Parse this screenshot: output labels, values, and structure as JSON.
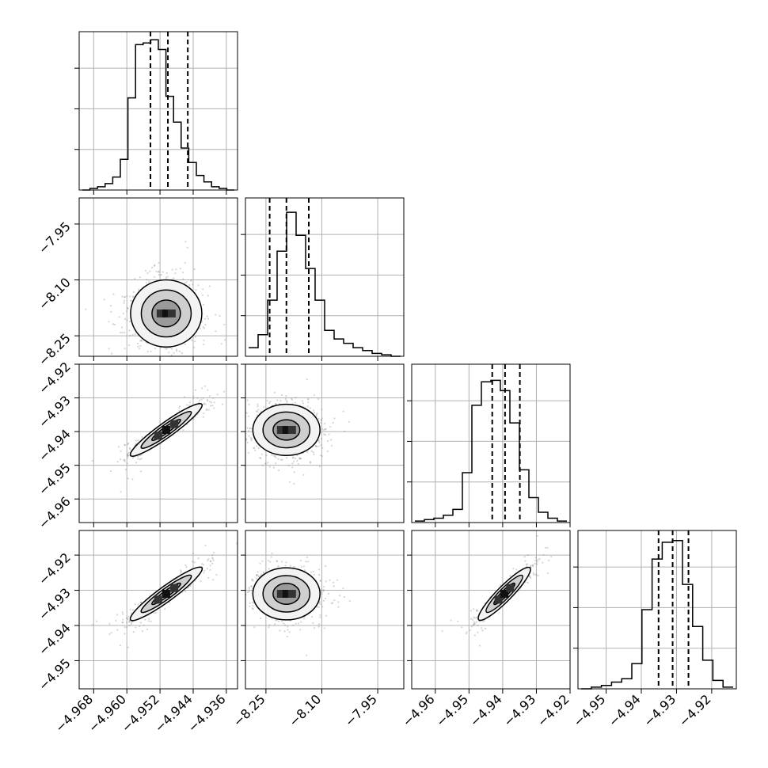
{
  "chart_data": {
    "type": "corner",
    "params": [
      {
        "id": "p1",
        "range": [
          -4.9715,
          -4.9333
        ],
        "ticks": [
          -4.968,
          -4.96,
          -4.952,
          -4.944,
          -4.936
        ],
        "tick_labels": [
          "−4.968",
          "−4.960",
          "−4.952",
          "−4.944",
          "−4.936"
        ]
      },
      {
        "id": "p2",
        "range": [
          -8.305,
          -7.88
        ],
        "ticks": [
          -8.25,
          -8.1,
          -7.95
        ],
        "tick_labels": [
          "−8.25",
          "−8.10",
          "−7.95"
        ]
      },
      {
        "id": "p3",
        "range": [
          -4.967,
          -4.92
        ],
        "ticks": [
          -4.96,
          -4.95,
          -4.94,
          -4.93,
          -4.92
        ],
        "tick_labels": [
          "−4.96",
          "−4.95",
          "−4.94",
          "−4.93",
          "−4.92"
        ]
      },
      {
        "id": "p4",
        "range": [
          -4.958,
          -4.913
        ],
        "ticks": [
          -4.95,
          -4.94,
          -4.93,
          -4.92
        ],
        "tick_labels": [
          "−4.95",
          "−4.94",
          "−4.93",
          "−4.92"
        ]
      }
    ],
    "histograms": [
      {
        "param": 0,
        "counts": [
          0.0,
          0.01,
          0.02,
          0.04,
          0.08,
          0.19,
          0.57,
          0.9,
          0.91,
          0.93,
          0.87,
          0.58,
          0.42,
          0.26,
          0.17,
          0.09,
          0.05,
          0.02,
          0.01,
          0.0
        ],
        "quantiles": [
          -4.9543,
          -4.9501,
          -4.9453
        ],
        "ymax": 0.98
      },
      {
        "param": 1,
        "counts": [
          0.06,
          0.15,
          0.39,
          0.73,
          1.0,
          0.84,
          0.61,
          0.39,
          0.18,
          0.12,
          0.09,
          0.06,
          0.04,
          0.02,
          0.01,
          0.0
        ],
        "quantiles": [
          -8.24,
          -8.195,
          -8.135
        ],
        "ymax": 1.1
      },
      {
        "param": 2,
        "counts": [
          0.01,
          0.02,
          0.03,
          0.05,
          0.09,
          0.34,
          0.8,
          0.96,
          0.97,
          0.9,
          0.68,
          0.36,
          0.17,
          0.07,
          0.03,
          0.01
        ],
        "quantiles": [
          -4.9431,
          -4.9393,
          -4.9349
        ],
        "ymax": 1.08
      },
      {
        "param": 3,
        "counts": [
          0.0,
          0.01,
          0.02,
          0.04,
          0.06,
          0.15,
          0.47,
          0.77,
          0.87,
          0.88,
          0.62,
          0.37,
          0.17,
          0.05,
          0.01
        ],
        "quantiles": [
          -4.9351,
          -4.9311,
          -4.9266
        ],
        "ymax": 0.94
      }
    ],
    "pairs": [
      {
        "x": 0,
        "y": 1,
        "center": [
          -4.9505,
          -8.19
        ],
        "spread": [
          0.0043,
          0.045
        ],
        "corr": 0.0
      },
      {
        "x": 0,
        "y": 2,
        "center": [
          -4.9505,
          -4.9395
        ],
        "spread": [
          0.0043,
          0.0038
        ],
        "corr": 0.97
      },
      {
        "x": 1,
        "y": 2,
        "center": [
          -8.195,
          -4.9395
        ],
        "spread": [
          0.045,
          0.0038
        ],
        "corr": 0.0
      },
      {
        "x": 0,
        "y": 3,
        "center": [
          -4.9505,
          -4.931
        ],
        "spread": [
          0.0043,
          0.0037
        ],
        "corr": 0.97
      },
      {
        "x": 1,
        "y": 3,
        "center": [
          -8.195,
          -4.931
        ],
        "spread": [
          0.045,
          0.0037
        ],
        "corr": 0.0
      },
      {
        "x": 2,
        "y": 3,
        "center": [
          -4.9395,
          -4.931
        ],
        "spread": [
          0.0038,
          0.0037
        ],
        "corr": 0.97
      }
    ],
    "grid": true,
    "colors": {
      "points": "#888888",
      "lines": "#000000",
      "grid": "#b0b0b0"
    }
  }
}
